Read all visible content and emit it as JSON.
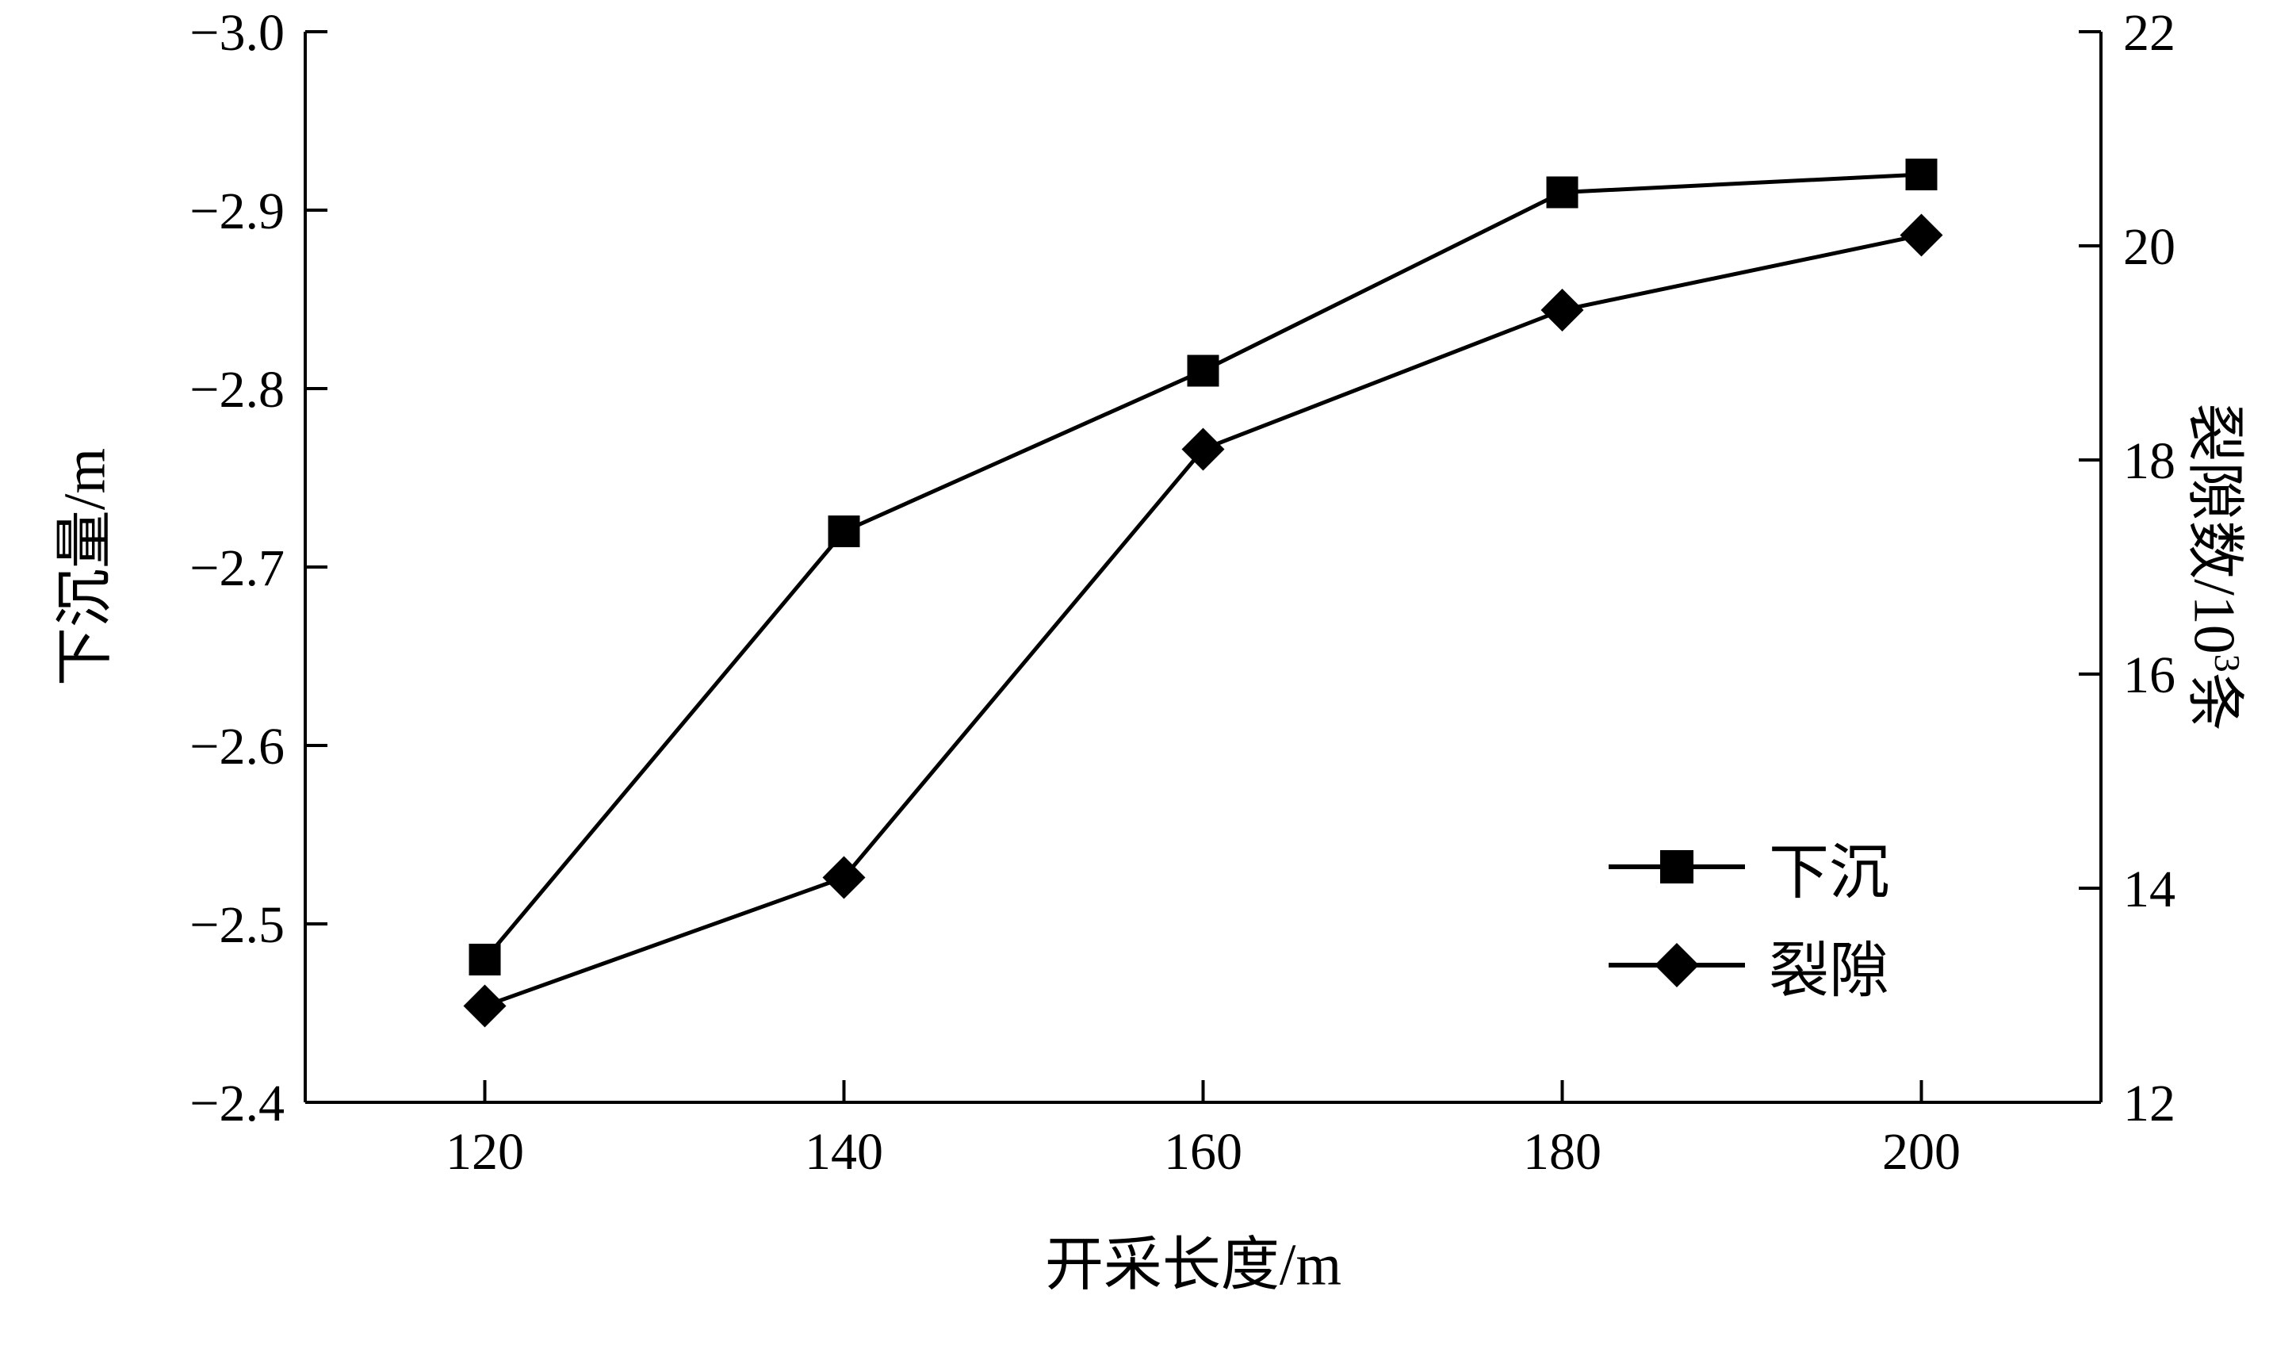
{
  "chart_data": {
    "type": "line",
    "title": "",
    "xlabel": "开采长度/m",
    "ylabel_left": "下沉量/m",
    "ylabel_right": {
      "pre": "裂隙数/10",
      "sup": "3",
      "post": "条",
      "full": "裂隙数/10³条"
    },
    "color": "#000000",
    "background": "#ffffff",
    "grid": false,
    "legend_position": "middle-right",
    "xlim": [
      110,
      210
    ],
    "x_ticks": [
      120,
      140,
      160,
      180,
      200
    ],
    "x_tick_labels": [
      "120",
      "140",
      "160",
      "180",
      "200"
    ],
    "left_axis": {
      "top": -3.0,
      "bottom": -2.4,
      "inverted": true,
      "ticks": [
        -3.0,
        -2.9,
        -2.8,
        -2.7,
        -2.6,
        -2.5,
        -2.4
      ],
      "tick_labels": [
        "−3.0",
        "−2.9",
        "−2.8",
        "−2.7",
        "−2.6",
        "−2.5",
        "−2.4"
      ]
    },
    "right_axis": {
      "top": 22,
      "bottom": 12,
      "ticks": [
        22,
        20,
        18,
        16,
        14,
        12
      ],
      "tick_labels": [
        "22",
        "20",
        "18",
        "16",
        "14",
        "12"
      ]
    },
    "x": [
      120,
      140,
      160,
      180,
      200
    ],
    "series": [
      {
        "name": "下沉",
        "axis": "left",
        "marker": "square",
        "values": [
          -2.48,
          -2.72,
          -2.81,
          -2.91,
          -2.92
        ]
      },
      {
        "name": "裂隙",
        "axis": "right",
        "marker": "diamond",
        "values": [
          12.9,
          14.1,
          18.1,
          19.4,
          20.1
        ]
      }
    ]
  }
}
